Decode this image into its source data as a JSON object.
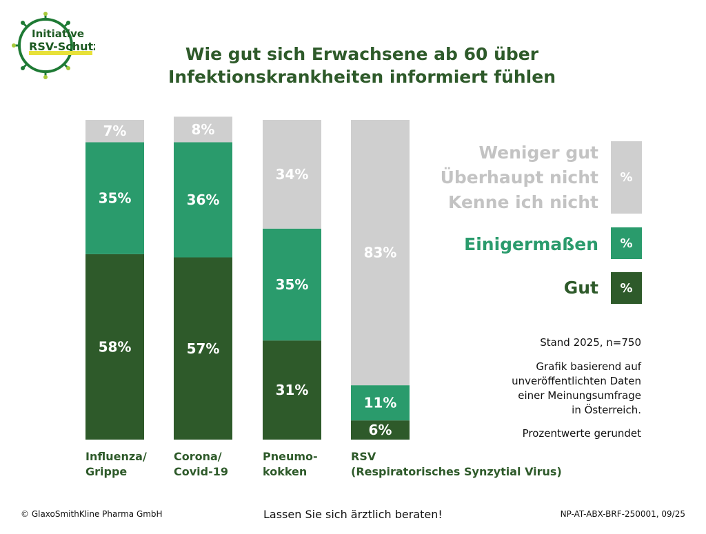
{
  "logo": {
    "line1": "Initiative",
    "line2": "RSV-Schutz"
  },
  "title": {
    "line1": "Wie gut sich Erwachsene ab 60 über",
    "line2": "Infektionskrankheiten informiert fühlen"
  },
  "colors": {
    "gut": "#2e5a2a",
    "einigermassen": "#2a9b6c",
    "weniger": "#cfcfcf",
    "text_dark": "#2e5a2a"
  },
  "chart_data": {
    "type": "bar",
    "stacked": true,
    "categories": [
      "Influenza/\nGrippe",
      "Corona/\nCovid-19",
      "Pneumo-\nkokken",
      "RSV\n(Respiratorisches Synzytial Virus)"
    ],
    "series": [
      {
        "name": "Gut",
        "values": [
          58,
          57,
          31,
          6
        ],
        "color": "#2e5a2a"
      },
      {
        "name": "Einigermaßen",
        "values": [
          35,
          36,
          35,
          11
        ],
        "color": "#2a9b6c"
      },
      {
        "name": "Weniger gut / Überhaupt nicht / Kenne ich nicht",
        "values": [
          7,
          8,
          34,
          83
        ],
        "color": "#cfcfcf"
      }
    ],
    "ylim": [
      0,
      100
    ],
    "unit": "%"
  },
  "legend": {
    "weniger_lines": [
      "Weniger gut",
      "Überhaupt nicht",
      "Kenne ich nicht"
    ],
    "einigermassen": "Einigermaßen",
    "gut": "Gut",
    "box_symbol": "%"
  },
  "notes": {
    "stand": "Stand 2025, n=750",
    "basis": [
      "Grafik basierend auf",
      "unveröffentlichten Daten",
      "einer Meinungsumfrage",
      "in Österreich."
    ],
    "rounded": "Prozentwerte gerundet"
  },
  "footer": {
    "copyright": "© GlaxoSmithKline Pharma GmbH",
    "advice": "Lassen Sie sich ärztlich beraten!",
    "code": "NP-AT-ABX-BRF-250001, 09/25"
  }
}
